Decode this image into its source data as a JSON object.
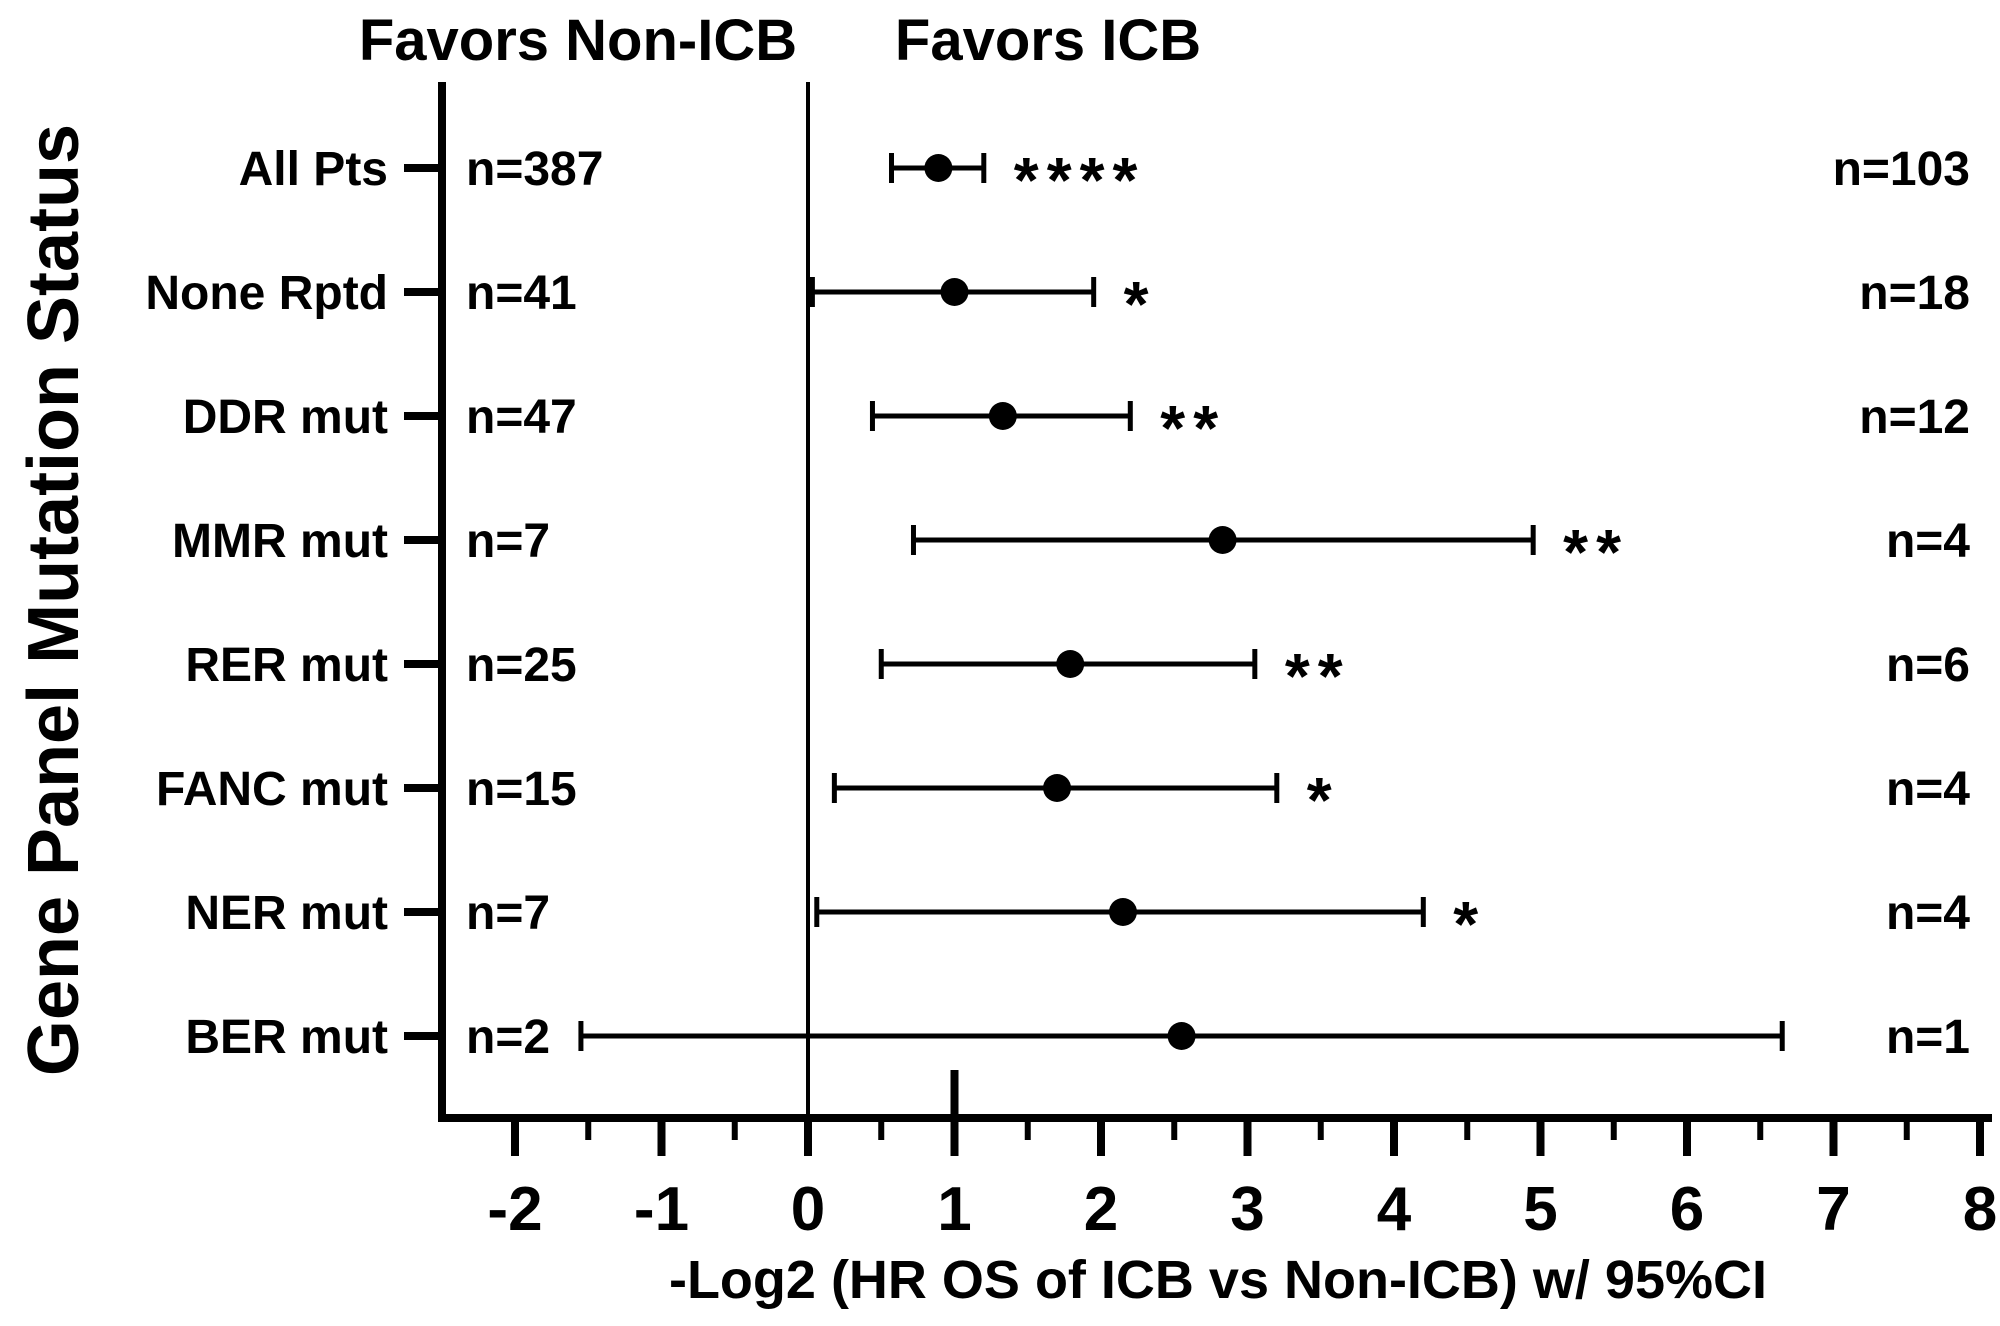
{
  "chart_data": {
    "type": "forest",
    "header_left": "Favors Non-ICB",
    "header_right": "Favors ICB",
    "xlabel": "-Log2 (HR OS of ICB vs Non-ICB) w/ 95%CI",
    "ylabel": "Gene Panel Mutation Status",
    "xlim": [
      -2.5,
      8
    ],
    "xticks": [
      "-2",
      "-1",
      "0",
      "1",
      "2",
      "3",
      "4",
      "5",
      "6",
      "7",
      "8"
    ],
    "reference_line_x": 0,
    "rows": [
      {
        "label": "All Pts",
        "estimate": 0.89,
        "ci_low": 0.57,
        "ci_high": 1.2,
        "sig": "****",
        "n_non_icb": "n=387",
        "n_icb": "n=103"
      },
      {
        "label": "None Rptd",
        "estimate": 1.0,
        "ci_low": 0.03,
        "ci_high": 1.95,
        "sig": "*",
        "n_non_icb": "n=41",
        "n_icb": "n=18"
      },
      {
        "label": "DDR mut",
        "estimate": 1.33,
        "ci_low": 0.44,
        "ci_high": 2.2,
        "sig": "**",
        "n_non_icb": "n=47",
        "n_icb": "n=12"
      },
      {
        "label": "MMR mut",
        "estimate": 2.83,
        "ci_low": 0.72,
        "ci_high": 4.95,
        "sig": "**",
        "n_non_icb": "n=7",
        "n_icb": "n=4"
      },
      {
        "label": "RER mut",
        "estimate": 1.79,
        "ci_low": 0.5,
        "ci_high": 3.05,
        "sig": "**",
        "n_non_icb": "n=25",
        "n_icb": "n=6"
      },
      {
        "label": "FANC mut",
        "estimate": 1.7,
        "ci_low": 0.18,
        "ci_high": 3.2,
        "sig": "*",
        "n_non_icb": "n=15",
        "n_icb": "n=4"
      },
      {
        "label": "NER mut",
        "estimate": 2.15,
        "ci_low": 0.06,
        "ci_high": 4.2,
        "sig": "*",
        "n_non_icb": "n=7",
        "n_icb": "n=4"
      },
      {
        "label": "BER mut",
        "estimate": 2.55,
        "ci_low": -1.55,
        "ci_high": 6.65,
        "sig": "",
        "n_non_icb": "n=2",
        "n_icb": "n=1"
      }
    ]
  }
}
